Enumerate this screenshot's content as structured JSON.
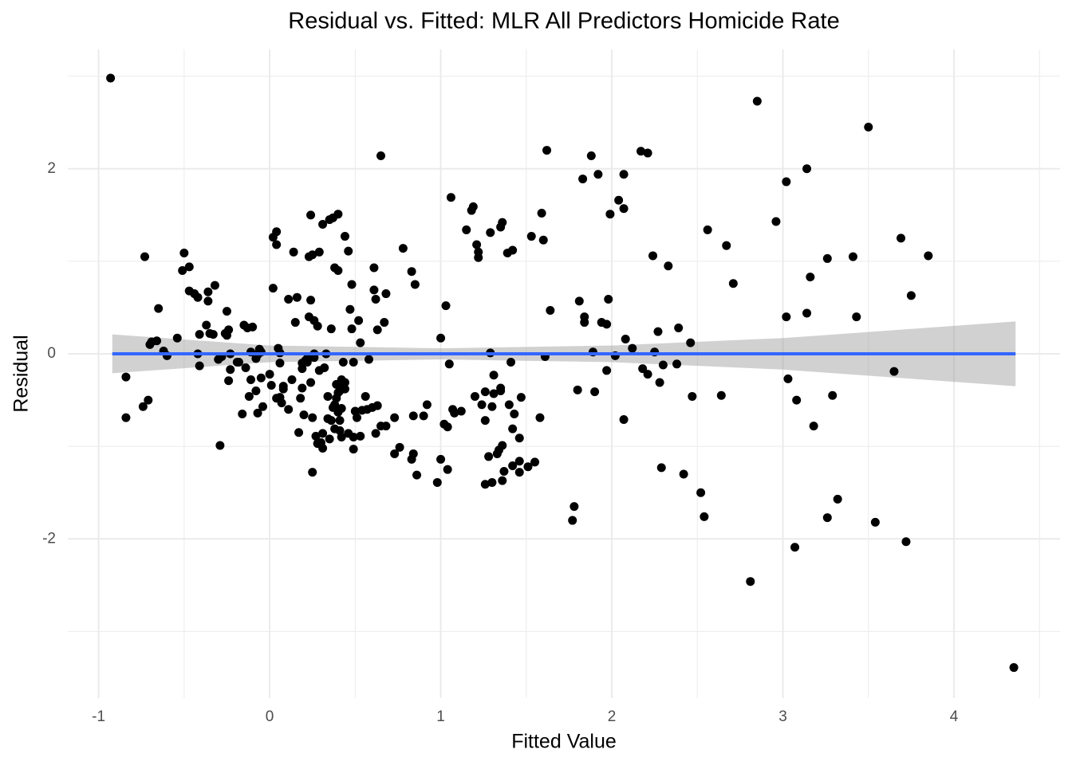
{
  "chart_data": {
    "type": "scatter",
    "title": "Residual vs. Fitted: MLR All Predictors Homicide Rate",
    "x_label": "Fitted Value",
    "y_label": "Residual",
    "xlim": [
      -1.18,
      4.62
    ],
    "ylim": [
      -3.72,
      3.29
    ],
    "xticks": [
      -1,
      0,
      1,
      2,
      3,
      4
    ],
    "yticks": [
      -2,
      0,
      2
    ],
    "xminor": [
      -0.5,
      0.5,
      1.5,
      2.5,
      3.5,
      4.5
    ],
    "yminor": [
      -3,
      -1,
      1,
      3
    ],
    "grid": true,
    "color": "#000000",
    "x": [
      -0.93,
      -0.84,
      -0.84,
      -0.73,
      -0.74,
      -0.71,
      -0.7,
      -0.69,
      -0.66,
      -0.65,
      -0.62,
      -0.6,
      -0.54,
      -0.51,
      -0.5,
      -0.47,
      -0.47,
      -0.44,
      -0.42,
      -0.42,
      -0.41,
      -0.41,
      -0.37,
      -0.36,
      -0.36,
      -0.35,
      -0.33,
      -0.32,
      -0.3,
      -0.29,
      -0.28,
      -0.26,
      -0.25,
      -0.25,
      -0.24,
      -0.24,
      -0.23,
      -0.23,
      -0.19,
      -0.18,
      -0.16,
      -0.15,
      -0.14,
      -0.13,
      -0.12,
      -0.1,
      -0.11,
      -0.11,
      -0.08,
      -0.08,
      -0.07,
      -0.07,
      -0.06,
      -0.05,
      -0.05,
      -0.04,
      0.0,
      0.01,
      0.02,
      0.02,
      0.04,
      0.04,
      0.04,
      0.05,
      0.06,
      0.06,
      0.06,
      0.07,
      0.08,
      0.08,
      0.11,
      0.11,
      0.13,
      0.14,
      0.15,
      0.16,
      0.17,
      0.18,
      0.19,
      0.19,
      0.19,
      0.2,
      0.21,
      0.22,
      0.22,
      0.23,
      0.23,
      0.24,
      0.24,
      0.24,
      0.25,
      0.25,
      0.25,
      0.26,
      0.26,
      0.26,
      0.27,
      0.28,
      0.28,
      0.29,
      0.29,
      0.3,
      0.31,
      0.31,
      0.31,
      0.32,
      0.33,
      0.34,
      0.34,
      0.35,
      0.35,
      0.36,
      0.36,
      0.37,
      0.37,
      0.38,
      0.38,
      0.38,
      0.39,
      0.39,
      0.4,
      0.4,
      0.4,
      0.4,
      0.41,
      0.41,
      0.41,
      0.42,
      0.42,
      0.42,
      0.43,
      0.43,
      0.44,
      0.44,
      0.44,
      0.46,
      0.46,
      0.47,
      0.48,
      0.48,
      0.49,
      0.49,
      0.49,
      0.5,
      0.51,
      0.52,
      0.53,
      0.53,
      0.54,
      0.56,
      0.57,
      0.58,
      0.6,
      0.61,
      0.61,
      0.62,
      0.62,
      0.63,
      0.63,
      0.65,
      0.65,
      0.67,
      0.68,
      0.68,
      0.73,
      0.73,
      0.76,
      0.78,
      0.83,
      0.83,
      0.84,
      0.84,
      0.85,
      0.86,
      0.9,
      0.92,
      0.98,
      1.0,
      1.0,
      1.02,
      1.03,
      1.04,
      1.04,
      1.05,
      1.06,
      1.07,
      1.08,
      1.12,
      1.15,
      1.18,
      1.19,
      1.2,
      1.21,
      1.22,
      1.22,
      1.24,
      1.26,
      1.26,
      1.26,
      1.28,
      1.29,
      1.29,
      1.3,
      1.3,
      1.31,
      1.31,
      1.33,
      1.34,
      1.35,
      1.35,
      1.35,
      1.36,
      1.36,
      1.36,
      1.37,
      1.39,
      1.4,
      1.41,
      1.42,
      1.42,
      1.42,
      1.43,
      1.46,
      1.46,
      1.46,
      1.47,
      1.51,
      1.53,
      1.55,
      1.58,
      1.59,
      1.6,
      1.61,
      1.62,
      1.64,
      1.78,
      1.77,
      1.8,
      1.81,
      1.83,
      1.84,
      1.84,
      1.88,
      1.89,
      1.9,
      1.92,
      1.94,
      1.97,
      1.97,
      1.98,
      1.99,
      2.02,
      2.04,
      2.07,
      2.07,
      2.07,
      2.08,
      2.12,
      2.17,
      2.18,
      2.21,
      2.21,
      2.24,
      2.25,
      2.27,
      2.28,
      2.29,
      2.3,
      2.33,
      2.38,
      2.39,
      2.42,
      2.46,
      2.47,
      2.52,
      2.54,
      2.56,
      2.64,
      2.67,
      2.71,
      2.81,
      2.85,
      2.96,
      3.02,
      3.02,
      3.03,
      3.07,
      3.08,
      3.14,
      3.14,
      3.16,
      3.18,
      3.26,
      3.26,
      3.29,
      3.32,
      3.41,
      3.43,
      3.5,
      3.54,
      3.65,
      3.69,
      3.72,
      3.75,
      3.85,
      4.35
    ],
    "values": [
      2.98,
      -0.69,
      -0.25,
      1.05,
      -0.57,
      -0.5,
      0.1,
      0.13,
      0.14,
      0.49,
      0.03,
      -0.02,
      0.17,
      0.9,
      1.09,
      0.94,
      0.68,
      0.65,
      0.61,
      0.0,
      0.21,
      -0.13,
      0.31,
      0.57,
      0.67,
      0.22,
      0.21,
      0.74,
      -0.06,
      -0.99,
      -0.03,
      0.22,
      0.46,
      0.2,
      0.26,
      -0.29,
      -0.17,
      0.0,
      -0.09,
      -0.09,
      -0.65,
      0.31,
      -0.15,
      0.28,
      -0.46,
      0.29,
      0.02,
      -0.28,
      -0.4,
      -0.05,
      -0.64,
      -0.01,
      0.05,
      0.02,
      -0.26,
      -0.57,
      -0.22,
      -0.34,
      0.71,
      1.26,
      1.32,
      1.18,
      -0.48,
      0.06,
      0.01,
      -0.1,
      -0.47,
      -0.53,
      -0.35,
      -0.38,
      0.59,
      -0.6,
      -0.28,
      1.1,
      0.34,
      0.61,
      -0.85,
      -0.48,
      -0.37,
      -0.16,
      -0.1,
      -0.66,
      -0.07,
      -0.05,
      -0.09,
      0.4,
      1.05,
      -0.31,
      0.58,
      1.5,
      -1.28,
      1.07,
      -0.69,
      0.36,
      -0.04,
      0.0,
      -0.89,
      0.3,
      -0.97,
      1.1,
      -0.18,
      -0.96,
      -0.86,
      1.4,
      -1.02,
      -0.15,
      0.0,
      -0.7,
      -0.46,
      1.45,
      -0.92,
      -0.72,
      0.27,
      1.47,
      -0.58,
      -0.55,
      0.93,
      -0.81,
      -0.33,
      -0.48,
      1.51,
      0.9,
      -0.42,
      -0.63,
      -0.4,
      -0.72,
      -0.83,
      -0.28,
      -0.59,
      -0.9,
      -0.35,
      -0.09,
      -0.31,
      -0.38,
      1.27,
      1.11,
      -0.86,
      0.48,
      0.75,
      0.27,
      -0.09,
      -0.9,
      -1.03,
      -0.62,
      -0.69,
      0.36,
      -0.89,
      0.12,
      -0.61,
      -0.46,
      -0.6,
      -0.06,
      -0.58,
      0.93,
      0.69,
      0.59,
      -0.86,
      -0.56,
      0.26,
      2.14,
      -0.78,
      0.34,
      0.65,
      -0.78,
      -0.69,
      -1.08,
      -1.01,
      1.14,
      0.89,
      -1.14,
      -1.08,
      -0.67,
      0.75,
      -1.31,
      -0.67,
      -0.55,
      -1.39,
      0.17,
      -1.14,
      -0.76,
      0.52,
      -1.25,
      -0.79,
      -0.11,
      1.69,
      -0.6,
      -0.64,
      -0.62,
      1.34,
      1.55,
      1.59,
      -0.46,
      1.18,
      1.1,
      1.04,
      -0.55,
      -0.41,
      -0.72,
      -1.41,
      -1.11,
      1.31,
      0.01,
      -1.39,
      -0.57,
      -0.43,
      -0.23,
      -1.08,
      -1.04,
      -0.4,
      -0.37,
      1.37,
      -0.99,
      1.42,
      -1.37,
      -1.27,
      1.09,
      -0.55,
      -0.09,
      -1.21,
      1.12,
      -0.81,
      -0.65,
      -1.16,
      -1.28,
      -0.91,
      -0.47,
      -1.22,
      1.27,
      -1.17,
      -0.69,
      1.52,
      1.23,
      -0.03,
      2.2,
      0.47,
      -1.65,
      -1.8,
      -0.39,
      0.57,
      1.89,
      0.4,
      0.34,
      2.14,
      0.02,
      -0.41,
      1.94,
      0.34,
      0.32,
      -0.18,
      0.59,
      1.51,
      -0.02,
      1.66,
      1.57,
      1.94,
      -0.71,
      0.16,
      0.06,
      2.19,
      -0.16,
      2.17,
      -0.22,
      1.06,
      0.02,
      0.24,
      -0.31,
      -1.23,
      -0.12,
      0.95,
      -0.11,
      0.28,
      -1.3,
      0.12,
      -0.46,
      -1.5,
      -1.76,
      1.34,
      -0.45,
      1.17,
      0.76,
      -2.46,
      2.73,
      1.43,
      1.86,
      0.4,
      -0.27,
      -2.09,
      -0.5,
      2.0,
      0.44,
      0.83,
      -0.78,
      1.03,
      -1.77,
      -0.45,
      -1.57,
      1.05,
      0.4,
      2.45,
      -1.82,
      -0.19,
      1.25,
      -2.03,
      0.63,
      1.06,
      -3.39
    ],
    "smooth": {
      "color": "#3366ff",
      "band_color": "#999999",
      "x": [
        -0.92,
        0,
        1,
        2,
        3,
        4.36
      ],
      "values": [
        0,
        0,
        0,
        0,
        0,
        0
      ],
      "band_lower": [
        -0.21,
        -0.09,
        -0.06,
        -0.09,
        -0.17,
        -0.35
      ],
      "band_upper": [
        0.21,
        0.09,
        0.06,
        0.09,
        0.17,
        0.35
      ]
    }
  }
}
